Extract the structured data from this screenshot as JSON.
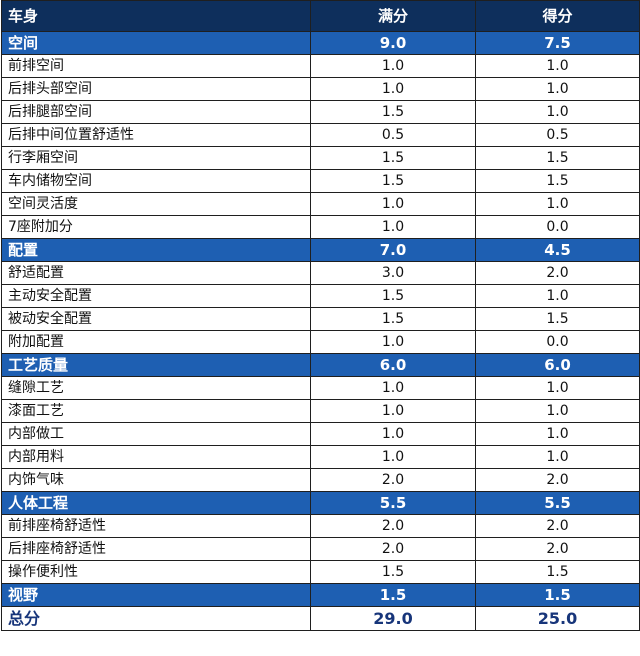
{
  "header": {
    "category": "车身",
    "full_score": "满分",
    "score": "得分"
  },
  "sections": [
    {
      "name": "空间",
      "full": "9.0",
      "score": "7.5",
      "items": [
        {
          "name": "前排空间",
          "full": "1.0",
          "score": "1.0"
        },
        {
          "name": "后排头部空间",
          "full": "1.0",
          "score": "1.0"
        },
        {
          "name": "后排腿部空间",
          "full": "1.5",
          "score": "1.0"
        },
        {
          "name": "后排中间位置舒适性",
          "full": "0.5",
          "score": "0.5"
        },
        {
          "name": "行李厢空间",
          "full": "1.5",
          "score": "1.5"
        },
        {
          "name": "车内储物空间",
          "full": "1.5",
          "score": "1.5"
        },
        {
          "name": "空间灵活度",
          "full": "1.0",
          "score": "1.0"
        },
        {
          "name": "7座附加分",
          "full": "1.0",
          "score": "0.0"
        }
      ]
    },
    {
      "name": "配置",
      "full": "7.0",
      "score": "4.5",
      "items": [
        {
          "name": "舒适配置",
          "full": "3.0",
          "score": "2.0"
        },
        {
          "name": "主动安全配置",
          "full": "1.5",
          "score": "1.0"
        },
        {
          "name": "被动安全配置",
          "full": "1.5",
          "score": "1.5"
        },
        {
          "name": "附加配置",
          "full": "1.0",
          "score": "0.0"
        }
      ]
    },
    {
      "name": "工艺质量",
      "full": "6.0",
      "score": "6.0",
      "items": [
        {
          "name": "缝隙工艺",
          "full": "1.0",
          "score": "1.0"
        },
        {
          "name": "漆面工艺",
          "full": "1.0",
          "score": "1.0"
        },
        {
          "name": "内部做工",
          "full": "1.0",
          "score": "1.0"
        },
        {
          "name": "内部用料",
          "full": "1.0",
          "score": "1.0"
        },
        {
          "name": "内饰气味",
          "full": "2.0",
          "score": "2.0"
        }
      ]
    },
    {
      "name": "人体工程",
      "full": "5.5",
      "score": "5.5",
      "items": [
        {
          "name": "前排座椅舒适性",
          "full": "2.0",
          "score": "2.0"
        },
        {
          "name": "后排座椅舒适性",
          "full": "2.0",
          "score": "2.0"
        },
        {
          "name": "操作便利性",
          "full": "1.5",
          "score": "1.5"
        }
      ]
    },
    {
      "name": "视野",
      "full": "1.5",
      "score": "1.5",
      "items": []
    }
  ],
  "total": {
    "label": "总分",
    "full": "29.0",
    "score": "25.0"
  },
  "colors": {
    "header_bg": "#0e2f5c",
    "section_bg": "#1e5fb2",
    "total_text": "#17357a"
  }
}
